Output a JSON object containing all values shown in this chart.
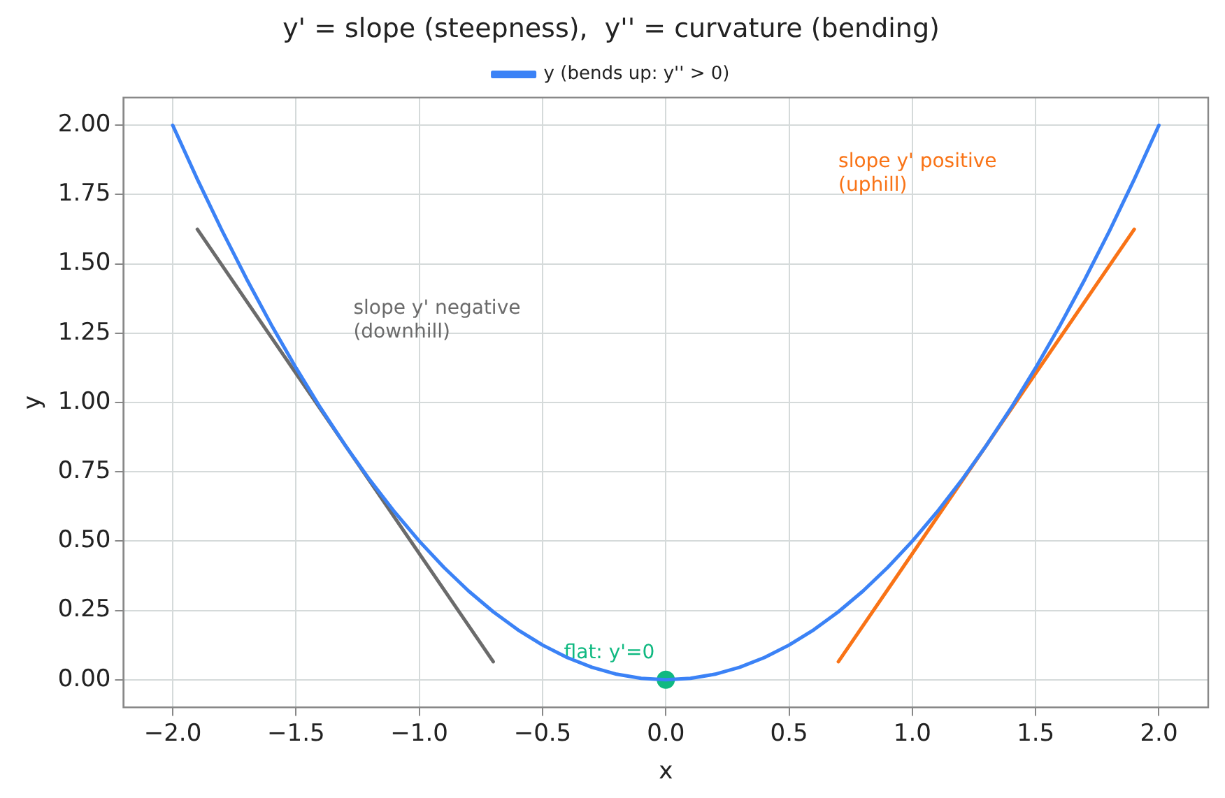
{
  "chart_data": {
    "type": "line",
    "title": "y' = slope (steepness),  y'' = curvature (bending)",
    "xlabel": "x",
    "ylabel": "y",
    "xlim": [
      -2.2,
      2.2
    ],
    "ylim": [
      -0.1,
      2.1
    ],
    "xticks": [
      {
        "value": -2,
        "label": "−2.0"
      },
      {
        "value": -1.5,
        "label": "−1.5"
      },
      {
        "value": -1,
        "label": "−1.0"
      },
      {
        "value": -0.5,
        "label": "−0.5"
      },
      {
        "value": 0,
        "label": "0.0"
      },
      {
        "value": 0.5,
        "label": "0.5"
      },
      {
        "value": 1,
        "label": "1.0"
      },
      {
        "value": 1.5,
        "label": "1.5"
      },
      {
        "value": 2,
        "label": "2.0"
      }
    ],
    "yticks": [
      {
        "value": 0,
        "label": "0.00"
      },
      {
        "value": 0.25,
        "label": "0.25"
      },
      {
        "value": 0.5,
        "label": "0.50"
      },
      {
        "value": 0.75,
        "label": "0.75"
      },
      {
        "value": 1,
        "label": "1.00"
      },
      {
        "value": 1.25,
        "label": "1.25"
      },
      {
        "value": 1.5,
        "label": "1.50"
      },
      {
        "value": 1.75,
        "label": "1.75"
      },
      {
        "value": 2,
        "label": "2.00"
      }
    ],
    "grid": true,
    "legend": "top",
    "marker": "none",
    "line_style": "solid",
    "series": [
      {
        "name": "y (bends up: y'' > 0)",
        "color": "#3b82f6",
        "x": [
          -2,
          -1.9,
          -1.8,
          -1.7,
          -1.6,
          -1.5,
          -1.4,
          -1.3,
          -1.2,
          -1.1,
          -1,
          -0.9,
          -0.8,
          -0.7,
          -0.6,
          -0.5,
          -0.4,
          -0.3,
          -0.2,
          -0.1,
          0,
          0.1,
          0.2,
          0.3,
          0.4,
          0.5,
          0.6,
          0.7,
          0.8,
          0.9,
          1,
          1.1,
          1.2,
          1.3,
          1.4,
          1.5,
          1.6,
          1.7,
          1.8,
          1.9,
          2
        ],
        "values": [
          2,
          1.805,
          1.62,
          1.445,
          1.28,
          1.125,
          0.98,
          0.845,
          0.72,
          0.605,
          0.5,
          0.405,
          0.32,
          0.245,
          0.18,
          0.125,
          0.08,
          0.045,
          0.02,
          0.005,
          0,
          0.005,
          0.02,
          0.045,
          0.08,
          0.125,
          0.18,
          0.245,
          0.32,
          0.405,
          0.5,
          0.605,
          0.72,
          0.845,
          0.98,
          1.125,
          1.28,
          1.445,
          1.62,
          1.805,
          2
        ]
      },
      {
        "color": "#6b6b6b",
        "x": [
          -1.9,
          -0.7
        ],
        "values": [
          1.625,
          0.065
        ]
      },
      {
        "color": "#f97316",
        "x": [
          0.7,
          1.9
        ],
        "values": [
          0.065,
          1.625
        ]
      },
      {
        "type": "scatter",
        "marker": "circle",
        "color": "#10b981",
        "x": [
          0
        ],
        "values": [
          0
        ]
      }
    ],
    "annotations": [
      "slope y' negative\n(downhill)",
      "slope y' positive\n(uphill)",
      "flat: y'=0"
    ]
  }
}
